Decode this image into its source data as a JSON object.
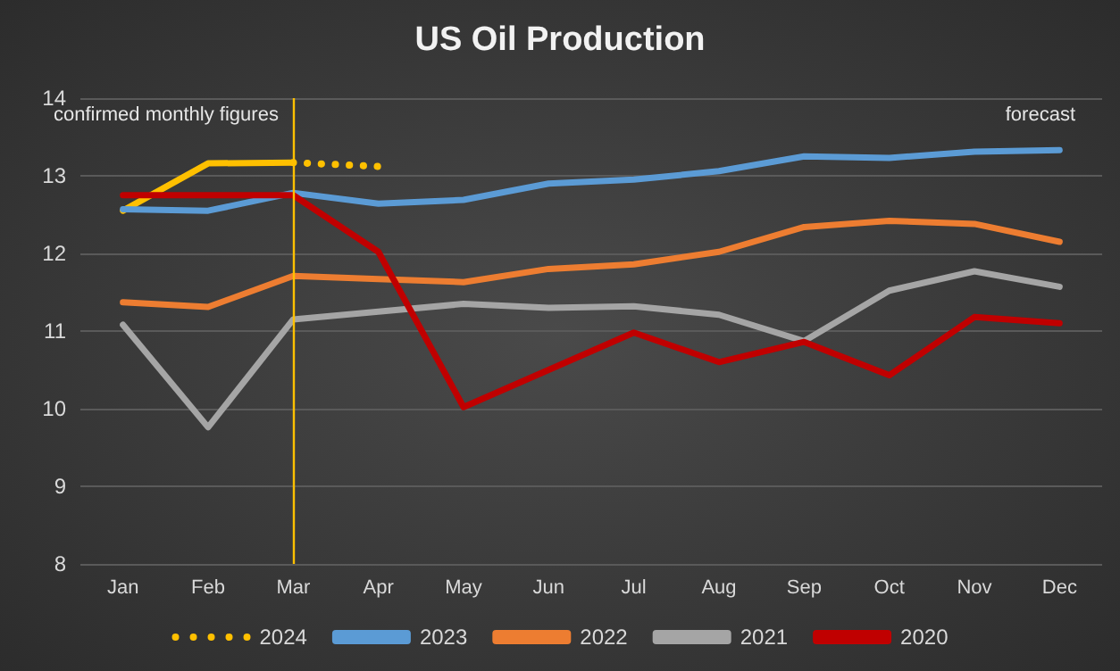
{
  "chart_data": {
    "type": "line",
    "title": "US Oil Production",
    "categories": [
      "Jan",
      "Feb",
      "Mar",
      "Apr",
      "May",
      "Jun",
      "Jul",
      "Aug",
      "Sep",
      "Oct",
      "Nov",
      "Dec"
    ],
    "series": [
      {
        "name": "2024",
        "color": "#ffc000",
        "line_style": "dotted",
        "values": [
          null,
          null,
          13.17,
          13.12,
          null,
          null,
          null,
          null,
          null,
          null,
          null,
          null
        ]
      },
      {
        "color": "#ffc000",
        "values": [
          12.55,
          13.16,
          13.17,
          null,
          null,
          null,
          null,
          null,
          null,
          null,
          null,
          null
        ]
      },
      {
        "name": "2023",
        "color": "#5b9bd5",
        "values": [
          12.57,
          12.55,
          12.78,
          12.64,
          12.69,
          12.9,
          12.95,
          13.06,
          13.25,
          13.23,
          13.31,
          13.33
        ]
      },
      {
        "name": "2022",
        "color": "#ed7d31",
        "values": [
          11.37,
          11.31,
          11.71,
          11.67,
          11.63,
          11.8,
          11.86,
          12.02,
          12.34,
          12.42,
          12.38,
          12.15
        ]
      },
      {
        "name": "2021",
        "color": "#a5a5a5",
        "values": [
          11.08,
          9.76,
          11.15,
          11.25,
          11.35,
          11.3,
          11.32,
          11.21,
          10.87,
          11.52,
          11.77,
          11.57
        ]
      },
      {
        "name": "2020",
        "color": "#c00000",
        "values": [
          12.75,
          12.75,
          12.75,
          12.02,
          10.02,
          10.5,
          10.98,
          10.6,
          10.86,
          10.43,
          11.18,
          11.1
        ]
      }
    ],
    "ylim": [
      8,
      14
    ],
    "yticks": [
      8,
      9,
      10,
      11,
      12,
      13,
      14
    ],
    "grid": "y",
    "legend": "bottom",
    "marker": "none",
    "line_style": "solid",
    "ref_lines": [
      {
        "axis": "x",
        "value": "Mar",
        "color": "#ffc000"
      }
    ],
    "annotations": [
      "confirmed monthly figures",
      "forecast"
    ]
  }
}
